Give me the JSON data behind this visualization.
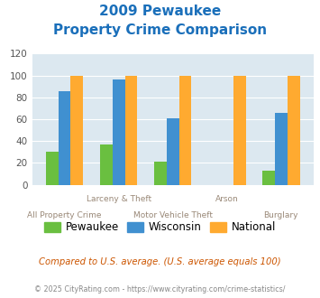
{
  "title_line1": "2009 Pewaukee",
  "title_line2": "Property Crime Comparison",
  "title_color": "#1a6fba",
  "categories": [
    "All Property Crime",
    "Larceny & Theft",
    "Motor Vehicle Theft",
    "Arson",
    "Burglary"
  ],
  "x_labels_top": [
    "",
    "Larceny & Theft",
    "",
    "Arson",
    ""
  ],
  "x_labels_bot": [
    "All Property Crime",
    "",
    "Motor Vehicle Theft",
    "",
    "Burglary"
  ],
  "pewaukee": [
    30,
    37,
    21,
    0,
    13
  ],
  "wisconsin": [
    86,
    96,
    61,
    0,
    66
  ],
  "national": [
    100,
    100,
    100,
    100,
    100
  ],
  "pewaukee_color": "#6abf40",
  "wisconsin_color": "#4090d0",
  "national_color": "#ffaa30",
  "background_color": "#dce8f0",
  "ylim": [
    0,
    120
  ],
  "yticks": [
    0,
    20,
    40,
    60,
    80,
    100,
    120
  ],
  "footnote": "Compared to U.S. average. (U.S. average equals 100)",
  "footnote2": "© 2025 CityRating.com - https://www.cityrating.com/crime-statistics/",
  "footnote_color": "#cc5500",
  "footnote2_color": "#888888",
  "legend_labels": [
    "Pewaukee",
    "Wisconsin",
    "National"
  ]
}
